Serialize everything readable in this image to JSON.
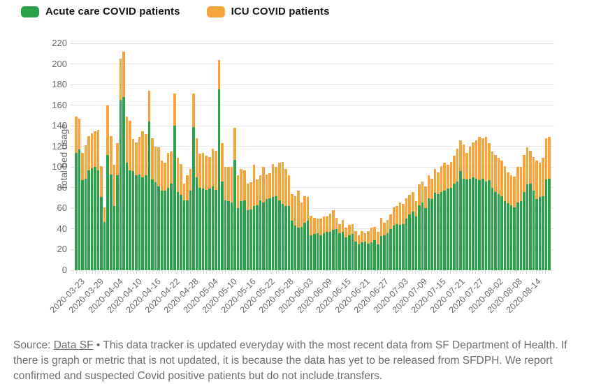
{
  "legend": {
    "acute_label": "Acute care COVID patients",
    "icu_label": "ICU COVID patients"
  },
  "colors": {
    "acute": "#2aa24c",
    "icu": "#f5a53c",
    "grid": "#e8e8e8"
  },
  "source": {
    "prefix": "Source: ",
    "link_label": "Data SF",
    "separator": " • ",
    "body": "This data tracker is updated everyday with the most recent data from SF Department of Health. If there is graph or metric that is not updated, it is because the data has yet to be released from SFDPH. We report confirmed and suspected Covid positive patients but do not include transfers."
  },
  "chart_data": {
    "type": "bar",
    "stacked": true,
    "title": "",
    "xlabel": "",
    "ylabel": "Total bed usage",
    "ylim": [
      0,
      220
    ],
    "y_ticks": [
      0,
      20,
      40,
      60,
      80,
      100,
      120,
      140,
      160,
      180,
      200,
      220
    ],
    "grid": true,
    "legend_position": "top-left",
    "x_tick_every": 6,
    "x_tick_labels": [
      "2020-03-23",
      "2020-03-29",
      "2020-04-04",
      "2020-04-10",
      "2020-04-16",
      "2020-04-22",
      "2020-04-28",
      "2020-05-04",
      "2020-05-10",
      "2020-05-16",
      "2020-05-22",
      "2020-05-28",
      "2020-06-03",
      "2020-06-09",
      "2020-06-15",
      "2020-06-21",
      "2020-06-27",
      "2020-07-03",
      "2020-07-09",
      "2020-07-15",
      "2020-07-21",
      "2020-07-27",
      "2020-08-02",
      "2020-08-08",
      "2020-08-14"
    ],
    "series": [
      {
        "name": "Acute care COVID patients",
        "values": [
          114,
          117,
          87,
          89,
          97,
          99,
          100,
          97,
          71,
          47,
          112,
          93,
          62,
          92,
          165,
          168,
          104,
          97,
          96,
          92,
          93,
          90,
          92,
          144,
          88,
          85,
          81,
          77,
          77,
          80,
          84,
          140,
          76,
          73,
          68,
          68,
          77,
          139,
          90,
          80,
          79,
          78,
          79,
          81,
          78,
          175,
          86,
          68,
          67,
          66,
          107,
          60,
          67,
          68,
          58,
          59,
          62,
          63,
          68,
          66,
          69,
          70,
          71,
          72,
          68,
          64,
          62,
          62,
          48,
          43,
          41,
          42,
          46,
          48,
          34,
          35,
          36,
          34,
          36,
          37,
          37,
          39,
          40,
          36,
          37,
          32,
          34,
          35,
          28,
          25,
          27,
          28,
          26,
          27,
          29,
          25,
          33,
          34,
          36,
          40,
          43,
          45,
          44,
          45,
          50,
          54,
          57,
          52,
          63,
          66,
          60,
          70,
          69,
          75,
          74,
          76,
          77,
          79,
          80,
          84,
          86,
          96,
          89,
          88,
          89,
          90,
          89,
          87,
          89,
          86,
          87,
          80,
          76,
          74,
          72,
          67,
          65,
          63,
          61,
          66,
          67,
          76,
          83,
          84,
          77,
          69,
          71,
          72,
          88,
          89
        ]
      },
      {
        "name": "ICU COVID patients",
        "values": [
          35,
          30,
          27,
          32,
          33,
          34,
          35,
          39,
          30,
          14,
          48,
          37,
          40,
          31,
          40,
          44,
          45,
          48,
          31,
          32,
          36,
          45,
          40,
          30,
          40,
          35,
          38,
          29,
          27,
          34,
          31,
          31,
          33,
          30,
          16,
          24,
          21,
          32,
          38,
          33,
          35,
          33,
          31,
          37,
          38,
          29,
          37,
          32,
          33,
          34,
          31,
          32,
          31,
          29,
          26,
          26,
          40,
          25,
          24,
          34,
          24,
          24,
          32,
          28,
          36,
          41,
          36,
          30,
          26,
          29,
          36,
          24,
          26,
          23,
          19,
          16,
          14,
          16,
          16,
          15,
          18,
          19,
          11,
          9,
          12,
          9,
          10,
          10,
          10,
          9,
          11,
          8,
          12,
          14,
          13,
          12,
          18,
          12,
          13,
          14,
          18,
          17,
          22,
          19,
          20,
          19,
          19,
          15,
          20,
          20,
          21,
          22,
          20,
          23,
          21,
          25,
          27,
          23,
          25,
          27,
          32,
          30,
          33,
          26,
          31,
          34,
          37,
          42,
          39,
          43,
          36,
          35,
          36,
          35,
          34,
          34,
          30,
          29,
          30,
          34,
          33,
          36,
          36,
          32,
          33,
          37,
          33,
          37,
          40,
          40
        ]
      }
    ]
  }
}
